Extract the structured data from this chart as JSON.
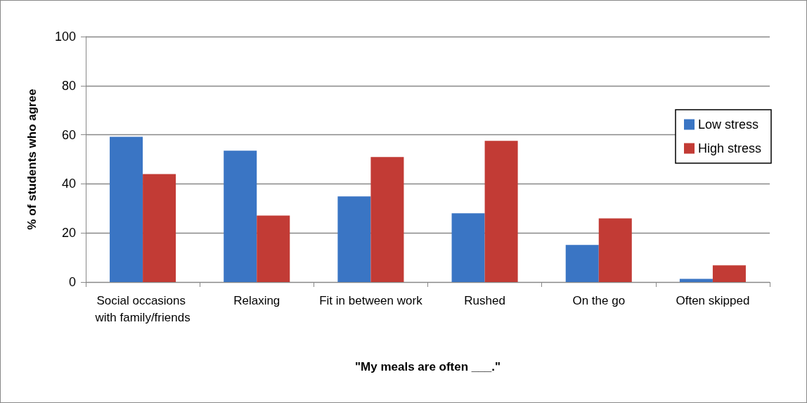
{
  "chart_data": {
    "type": "bar",
    "categories": [
      "Social occasions with family/friends",
      "Relaxing",
      "Fit in between work",
      "Rushed",
      "On the go",
      "Often skipped"
    ],
    "series": [
      {
        "name": "Low stress",
        "color": "#3a75c4",
        "values": [
          59.2,
          53.5,
          34.9,
          28.0,
          15.1,
          1.3
        ]
      },
      {
        "name": "High stress",
        "color": "#c23b35",
        "values": [
          44.0,
          27.1,
          50.9,
          57.5,
          25.9,
          6.8
        ]
      }
    ],
    "xlabel": "\"My meals are often ___.\"",
    "ylabel": "% of students who agree",
    "ylim": [
      0,
      100
    ],
    "yticks": [
      0,
      20,
      40,
      60,
      80,
      100
    ],
    "grid": "y",
    "legend": "right"
  }
}
